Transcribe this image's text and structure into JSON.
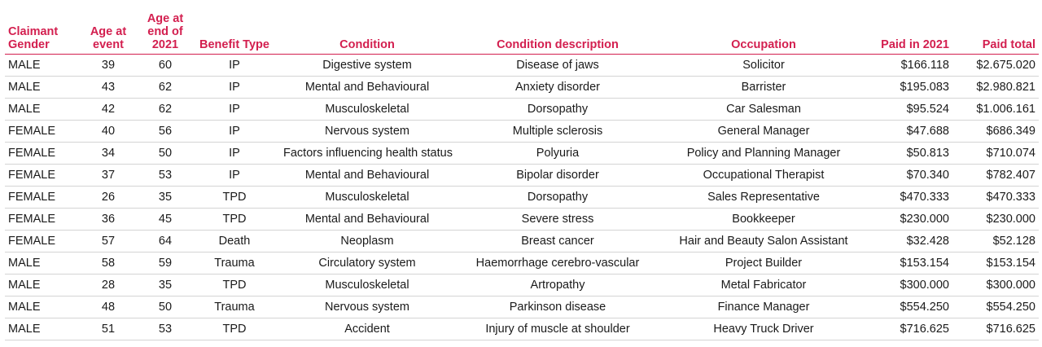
{
  "headers": {
    "gender": [
      "Claimant",
      "Gender"
    ],
    "age_event": [
      "Age at",
      "event"
    ],
    "age_end": [
      "Age at",
      "end of",
      "2021"
    ],
    "benefit": "Benefit Type",
    "condition": "Condition",
    "condition_desc": "Condition description",
    "occupation": "Occupation",
    "paid_2021": "Paid in 2021",
    "paid_total": "Paid total"
  },
  "rows": [
    {
      "gender": "MALE",
      "age_event": "39",
      "age_end": "60",
      "benefit": "IP",
      "condition": "Digestive system",
      "condition_desc": "Disease of jaws",
      "occupation": "Solicitor",
      "paid_2021": "$166.118",
      "paid_total": "$2.675.020"
    },
    {
      "gender": "MALE",
      "age_event": "43",
      "age_end": "62",
      "benefit": "IP",
      "condition": "Mental and Behavioural",
      "condition_desc": "Anxiety disorder",
      "occupation": "Barrister",
      "paid_2021": "$195.083",
      "paid_total": "$2.980.821"
    },
    {
      "gender": "MALE",
      "age_event": "42",
      "age_end": "62",
      "benefit": "IP",
      "condition": "Musculoskeletal",
      "condition_desc": "Dorsopathy",
      "occupation": "Car Salesman",
      "paid_2021": "$95.524",
      "paid_total": "$1.006.161"
    },
    {
      "gender": "FEMALE",
      "age_event": "40",
      "age_end": "56",
      "benefit": "IP",
      "condition": "Nervous system",
      "condition_desc": "Multiple sclerosis",
      "occupation": "General Manager",
      "paid_2021": "$47.688",
      "paid_total": "$686.349"
    },
    {
      "gender": "FEMALE",
      "age_event": "34",
      "age_end": "50",
      "benefit": "IP",
      "condition": "Factors influencing health status",
      "condition_desc": "Polyuria",
      "occupation": "Policy and Planning Manager",
      "paid_2021": "$50.813",
      "paid_total": "$710.074"
    },
    {
      "gender": "FEMALE",
      "age_event": "37",
      "age_end": "53",
      "benefit": "IP",
      "condition": "Mental and Behavioural",
      "condition_desc": "Bipolar disorder",
      "occupation": "Occupational Therapist",
      "paid_2021": "$70.340",
      "paid_total": "$782.407"
    },
    {
      "gender": "FEMALE",
      "age_event": "26",
      "age_end": "35",
      "benefit": "TPD",
      "condition": "Musculoskeletal",
      "condition_desc": "Dorsopathy",
      "occupation": "Sales Representative",
      "paid_2021": "$470.333",
      "paid_total": "$470.333"
    },
    {
      "gender": "FEMALE",
      "age_event": "36",
      "age_end": "45",
      "benefit": "TPD",
      "condition": "Mental and Behavioural",
      "condition_desc": "Severe stress",
      "occupation": "Bookkeeper",
      "paid_2021": "$230.000",
      "paid_total": "$230.000"
    },
    {
      "gender": "FEMALE",
      "age_event": "57",
      "age_end": "64",
      "benefit": "Death",
      "condition": "Neoplasm",
      "condition_desc": "Breast cancer",
      "occupation": "Hair and Beauty Salon Assistant",
      "paid_2021": "$32.428",
      "paid_total": "$52.128"
    },
    {
      "gender": "MALE",
      "age_event": "58",
      "age_end": "59",
      "benefit": "Trauma",
      "condition": "Circulatory system",
      "condition_desc": "Haemorrhage cerebro-vascular",
      "occupation": "Project Builder",
      "paid_2021": "$153.154",
      "paid_total": "$153.154"
    },
    {
      "gender": "MALE",
      "age_event": "28",
      "age_end": "35",
      "benefit": "TPD",
      "condition": "Musculoskeletal",
      "condition_desc": "Artropathy",
      "occupation": "Metal Fabricator",
      "paid_2021": "$300.000",
      "paid_total": "$300.000"
    },
    {
      "gender": "MALE",
      "age_event": "48",
      "age_end": "50",
      "benefit": "Trauma",
      "condition": "Nervous system",
      "condition_desc": "Parkinson disease",
      "occupation": "Finance Manager",
      "paid_2021": "$554.250",
      "paid_total": "$554.250"
    },
    {
      "gender": "MALE",
      "age_event": "51",
      "age_end": "53",
      "benefit": "TPD",
      "condition": "Accident",
      "condition_desc": "Injury of muscle at shoulder",
      "occupation": "Heavy Truck Driver",
      "paid_2021": "$716.625",
      "paid_total": "$716.625"
    }
  ]
}
